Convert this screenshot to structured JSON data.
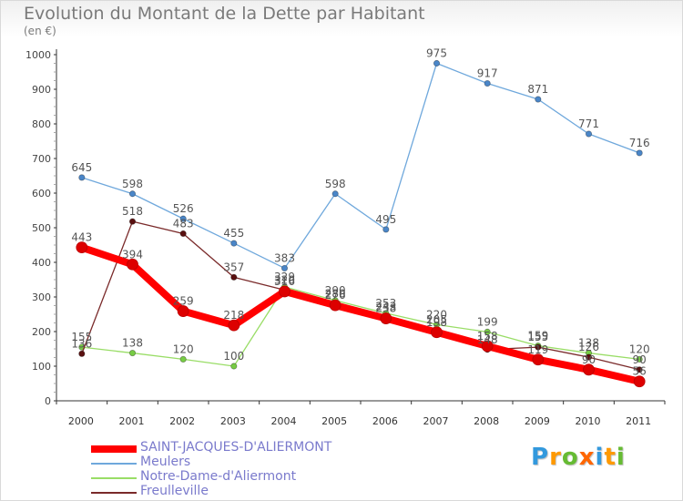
{
  "title": "Evolution du Montant de la Dette par Habitant",
  "unit": "(en €)",
  "logo_text": "Proxiti",
  "chart_data": {
    "type": "line",
    "x": [
      "2000",
      "2001",
      "2002",
      "2003",
      "2004",
      "2005",
      "2006",
      "2007",
      "2008",
      "2009",
      "2010",
      "2011"
    ],
    "ylim": [
      0,
      1000
    ],
    "yticks": [
      "0",
      "100",
      "200",
      "300",
      "400",
      "500",
      "600",
      "700",
      "800",
      "900",
      "1000"
    ],
    "grid": false,
    "legend_position": "bottom-left",
    "series": [
      {
        "name": "SAINT-JACQUES-D'ALIERMONT",
        "color": "#ff0000",
        "marker_color": "#dd0000",
        "values": [
          443,
          394,
          259,
          218,
          316,
          276,
          238,
          198,
          158,
          119,
          90,
          56
        ],
        "labels": [
          "443",
          "394",
          "259",
          "218",
          "316",
          "276",
          "238",
          "198",
          "158",
          "119",
          "90",
          "56"
        ]
      },
      {
        "name": "Meulers",
        "color": "#6fa8dc",
        "marker_color": "#4a86c8",
        "values": [
          645,
          598,
          526,
          455,
          383,
          598,
          495,
          975,
          917,
          871,
          771,
          716
        ],
        "labels": [
          "645",
          "598",
          "526",
          "455",
          "383",
          "598",
          "495",
          "975",
          "917",
          "871",
          "771",
          "716"
        ]
      },
      {
        "name": "Notre-Dame-d'Aliermont",
        "color": "#99dd66",
        "marker_color": "#77cc44",
        "values": [
          155,
          138,
          120,
          100,
          329,
          290,
          253,
          220,
          199,
          159,
          138,
          120
        ],
        "labels": [
          "155",
          "138",
          "120",
          "100",
          "329",
          "290",
          "253",
          "220",
          "199",
          "159",
          "138",
          "120"
        ]
      },
      {
        "name": "Freulleville",
        "color": "#7a2a2a",
        "marker_color": "#5a1010",
        "values": [
          136,
          518,
          483,
          357,
          320,
          280,
          243,
          205,
          148,
          155,
          126,
          90
        ],
        "labels": [
          "136",
          "518",
          "483",
          "357",
          "320",
          "280",
          "243",
          "205",
          "148",
          "155",
          "126",
          "90"
        ]
      }
    ]
  }
}
